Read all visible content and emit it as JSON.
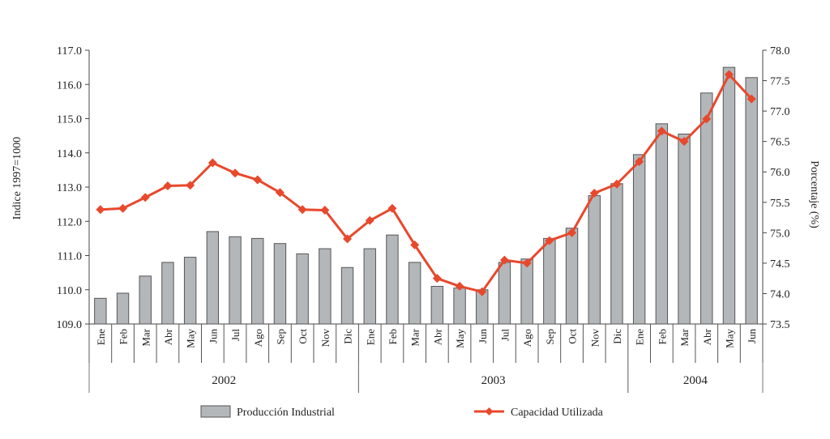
{
  "chart_data": {
    "type": "bar+line",
    "categories": [
      "Ene",
      "Feb",
      "Mar",
      "Abr",
      "May",
      "Jun",
      "Jul",
      "Ago",
      "Sep",
      "Oct",
      "Nov",
      "Dic",
      "Ene",
      "Feb",
      "Mar",
      "Abr",
      "May",
      "Jun",
      "Jul",
      "Ago",
      "Sep",
      "Oct",
      "Nov",
      "Dic",
      "Ene",
      "Feb",
      "Mar",
      "Abr",
      "May",
      "Jun"
    ],
    "years": [
      {
        "label": "2002",
        "start": 0,
        "end": 11
      },
      {
        "label": "2003",
        "start": 12,
        "end": 23
      },
      {
        "label": "2004",
        "start": 24,
        "end": 29
      }
    ],
    "series": [
      {
        "name": "Producción Industrial",
        "type": "bar",
        "axis": "left",
        "color": "#b4b7ba",
        "values": [
          109.75,
          109.9,
          110.4,
          110.8,
          110.95,
          111.7,
          111.55,
          111.5,
          111.35,
          111.05,
          111.2,
          110.65,
          111.2,
          111.6,
          110.8,
          110.1,
          110.05,
          110.0,
          110.8,
          110.9,
          111.5,
          111.8,
          112.75,
          113.1,
          113.95,
          114.85,
          114.55,
          115.75,
          116.5,
          116.2
        ]
      },
      {
        "name": "Capacidad Utilizada",
        "type": "line",
        "axis": "right",
        "color": "#e8482c",
        "values": [
          75.38,
          75.4,
          75.58,
          75.77,
          75.78,
          76.15,
          75.98,
          75.87,
          75.66,
          75.38,
          75.37,
          74.9,
          75.2,
          75.4,
          74.8,
          74.25,
          74.12,
          74.03,
          74.55,
          74.5,
          74.87,
          75.0,
          75.65,
          75.8,
          76.17,
          76.67,
          76.5,
          76.87,
          77.6,
          77.2
        ]
      }
    ],
    "y_left": {
      "label": "Indice 1997=1000",
      "min": 109.0,
      "max": 117.0,
      "ticks": [
        "109.0",
        "110.0",
        "111.0",
        "112.0",
        "113.0",
        "114.0",
        "115.0",
        "116.0",
        "117.0"
      ]
    },
    "y_right": {
      "label": "Porcentaje (%)",
      "min": 73.5,
      "max": 78.0,
      "ticks": [
        "73.5",
        "74.0",
        "74.5",
        "75.0",
        "75.5",
        "76.0",
        "76.5",
        "77.0",
        "77.5",
        "78.0"
      ]
    },
    "grid": false,
    "legend_position": "bottom"
  }
}
